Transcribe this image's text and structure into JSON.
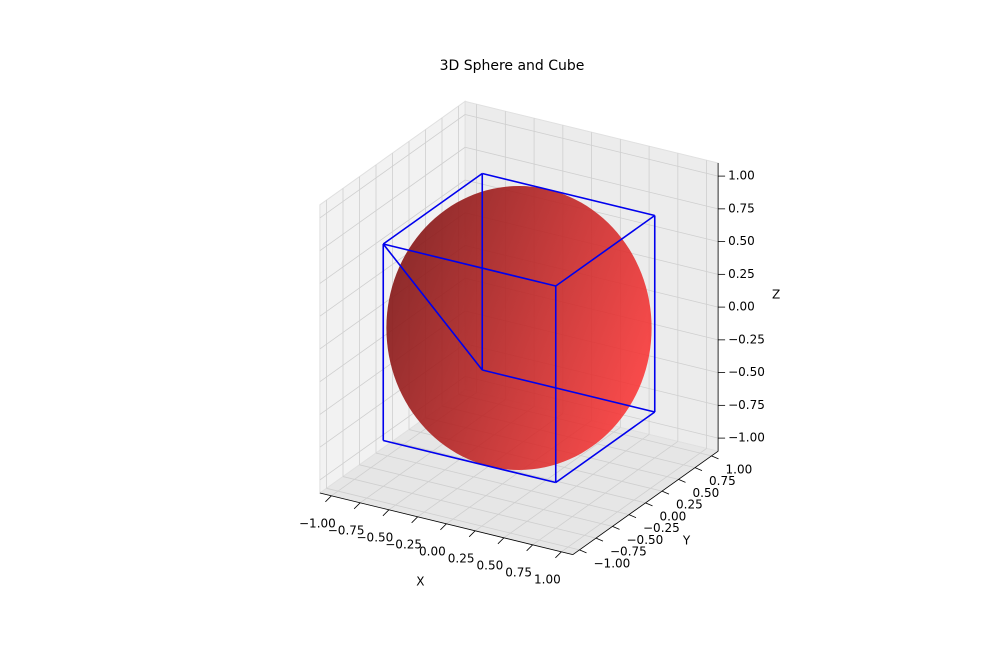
{
  "chart_data": {
    "type": "3d",
    "title": "3D Sphere and Cube",
    "xlabel": "X",
    "ylabel": "Y",
    "zlabel": "Z",
    "xlim": [
      -1.1,
      1.1
    ],
    "ylim": [
      -1.1,
      1.1
    ],
    "zlim": [
      -1.1,
      1.1
    ],
    "xticks": [
      {
        "value": -1,
        "label": "−1.00"
      },
      {
        "value": -0.75,
        "label": "−0.75"
      },
      {
        "value": -0.5,
        "label": "−0.50"
      },
      {
        "value": -0.25,
        "label": "−0.25"
      },
      {
        "value": 0,
        "label": "0.00"
      },
      {
        "value": 0.25,
        "label": "0.25"
      },
      {
        "value": 0.5,
        "label": "0.50"
      },
      {
        "value": 0.75,
        "label": "0.75"
      },
      {
        "value": 1,
        "label": "1.00"
      }
    ],
    "yticks": [
      {
        "value": -1,
        "label": "−1.00"
      },
      {
        "value": -0.75,
        "label": "−0.75"
      },
      {
        "value": -0.5,
        "label": "−0.50"
      },
      {
        "value": -0.25,
        "label": "−0.25"
      },
      {
        "value": 0,
        "label": "0.00"
      },
      {
        "value": 0.25,
        "label": "0.25"
      },
      {
        "value": 0.5,
        "label": "0.50"
      },
      {
        "value": 0.75,
        "label": "0.75"
      },
      {
        "value": 1,
        "label": "1.00"
      }
    ],
    "zticks": [
      {
        "value": -1,
        "label": "−1.00"
      },
      {
        "value": -0.75,
        "label": "−0.75"
      },
      {
        "value": -0.5,
        "label": "−0.50"
      },
      {
        "value": -0.25,
        "label": "−0.25"
      },
      {
        "value": 0,
        "label": "0.00"
      },
      {
        "value": 0.25,
        "label": "0.25"
      },
      {
        "value": 0.5,
        "label": "0.50"
      },
      {
        "value": 0.75,
        "label": "0.75"
      },
      {
        "value": 1,
        "label": "1.00"
      }
    ],
    "grid": true,
    "sphere": {
      "center": [
        0,
        0,
        0
      ],
      "radius": 1,
      "color": "#ff3030"
    },
    "cube": {
      "color": "#0000ee",
      "x": [
        -0.75,
        -0.75,
        0.75,
        0.75,
        0.75,
        -0.75,
        -0.75,
        0.75,
        0.75,
        null,
        0.75,
        0.75,
        null,
        -0.75,
        -0.75,
        0.75,
        null,
        -0.75,
        -0.75
      ],
      "y": [
        -0.75,
        -0.75,
        -0.75,
        0.75,
        0.75,
        0.75,
        -0.75,
        -0.75,
        -0.75,
        null,
        -0.75,
        0.75,
        null,
        0.75,
        0.75,
        0.75,
        null,
        -0.75,
        0.75
      ],
      "z": [
        0.75,
        -0.75,
        -0.75,
        -0.75,
        0.75,
        0.75,
        0.75,
        0.75,
        -0.75,
        null,
        0.75,
        0.75,
        null,
        0.75,
        -0.75,
        -0.75,
        null,
        0.75,
        -0.75
      ]
    }
  }
}
